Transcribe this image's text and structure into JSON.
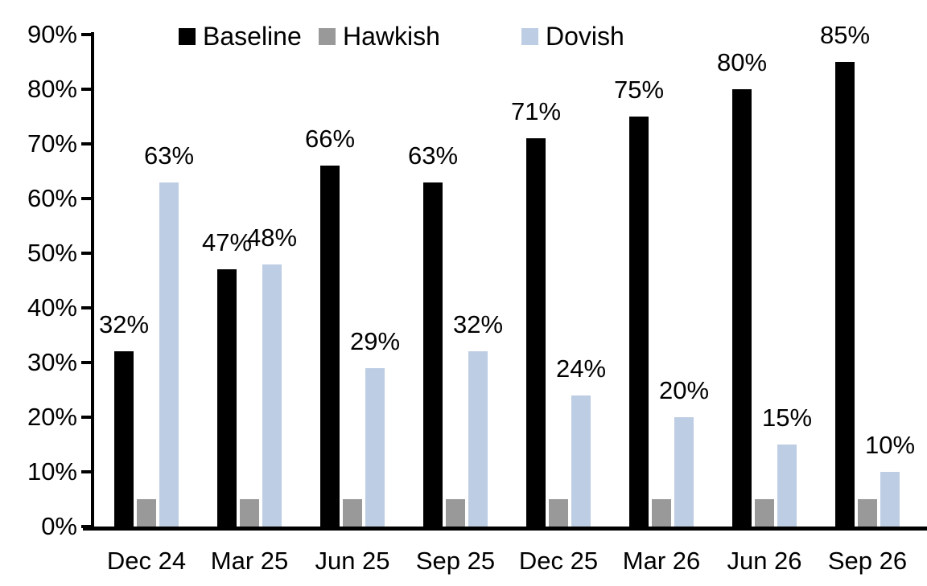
{
  "chart_data": {
    "type": "bar",
    "categories": [
      "Dec 24",
      "Mar 25",
      "Jun 25",
      "Sep 25",
      "Dec 25",
      "Mar 26",
      "Jun 26",
      "Sep 26"
    ],
    "series": [
      {
        "name": "Baseline",
        "color": "#000000",
        "values": [
          32,
          47,
          66,
          63,
          71,
          75,
          80,
          85
        ],
        "data_labels": true
      },
      {
        "name": "Hawkish",
        "color": "#999999",
        "values": [
          5,
          5,
          5,
          5,
          5,
          5,
          5,
          5
        ],
        "data_labels": false
      },
      {
        "name": "Dovish",
        "color": "#BDCDE4",
        "values": [
          63,
          48,
          29,
          32,
          24,
          20,
          15,
          10
        ],
        "data_labels": true
      }
    ],
    "title": "",
    "xlabel": "",
    "ylabel": "",
    "ylim": [
      0,
      90
    ],
    "ytick_step": 10,
    "ytick_labels": [
      "0%",
      "10%",
      "20%",
      "30%",
      "40%",
      "50%",
      "60%",
      "70%",
      "80%",
      "90%"
    ],
    "value_label_suffix": "%",
    "grid": false,
    "legend_position": "top"
  },
  "colors": {
    "axis": "#000000",
    "background": "#ffffff",
    "baseline_series": "#000000",
    "hawkish_series": "#999999",
    "dovish_series": "#BDCDE4"
  }
}
